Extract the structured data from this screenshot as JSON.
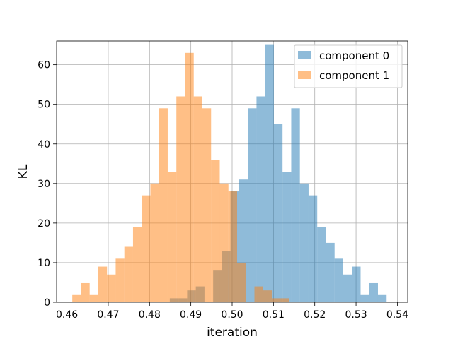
{
  "chart_data": {
    "type": "histogram",
    "title": "",
    "xlabel": "iteration",
    "ylabel": "KL",
    "xlim": [
      0.4575,
      0.5425
    ],
    "ylim": [
      0,
      66
    ],
    "xticks": [
      0.46,
      0.47,
      0.48,
      0.49,
      0.5,
      0.51,
      0.52,
      0.53,
      0.54
    ],
    "xtick_labels": [
      "0.46",
      "0.47",
      "0.48",
      "0.49",
      "0.50",
      "0.51",
      "0.52",
      "0.53",
      "0.54"
    ],
    "yticks": [
      0,
      10,
      20,
      30,
      40,
      50,
      60
    ],
    "ytick_labels": [
      "0",
      "10",
      "20",
      "30",
      "40",
      "50",
      "60"
    ],
    "grid": true,
    "legend": {
      "position": "top-right"
    },
    "series": [
      {
        "name": "component 0",
        "color": "#1f77b4",
        "opacity": 0.5,
        "bin_edges": [
          0.4849,
          0.487,
          0.4891,
          0.4912,
          0.4933,
          0.4954,
          0.4975,
          0.4996,
          0.5017,
          0.5038,
          0.5059,
          0.508,
          0.5101,
          0.5122,
          0.5143,
          0.5164,
          0.5185,
          0.5206,
          0.5227,
          0.5248,
          0.5269,
          0.529,
          0.5311,
          0.5332,
          0.5353,
          0.5374
        ],
        "counts": [
          1,
          1,
          3,
          4,
          0,
          8,
          13,
          28,
          31,
          49,
          52,
          65,
          45,
          33,
          49,
          30,
          27,
          19,
          15,
          11,
          7,
          9,
          2,
          5,
          2
        ]
      },
      {
        "name": "component 1",
        "color": "#ff7f0e",
        "opacity": 0.5,
        "bin_edges": [
          0.4613,
          0.4634,
          0.4655,
          0.4676,
          0.4697,
          0.4718,
          0.4739,
          0.476,
          0.4781,
          0.4802,
          0.4823,
          0.4844,
          0.4865,
          0.4886,
          0.4907,
          0.4928,
          0.4949,
          0.497,
          0.4991,
          0.5012,
          0.5033,
          0.5054,
          0.5075,
          0.5096,
          0.5117,
          0.5138
        ],
        "counts": [
          2,
          5,
          2,
          9,
          7,
          11,
          14,
          19,
          27,
          30,
          49,
          33,
          52,
          63,
          52,
          49,
          36,
          30,
          28,
          10,
          0,
          4,
          3,
          1,
          1
        ]
      }
    ]
  }
}
